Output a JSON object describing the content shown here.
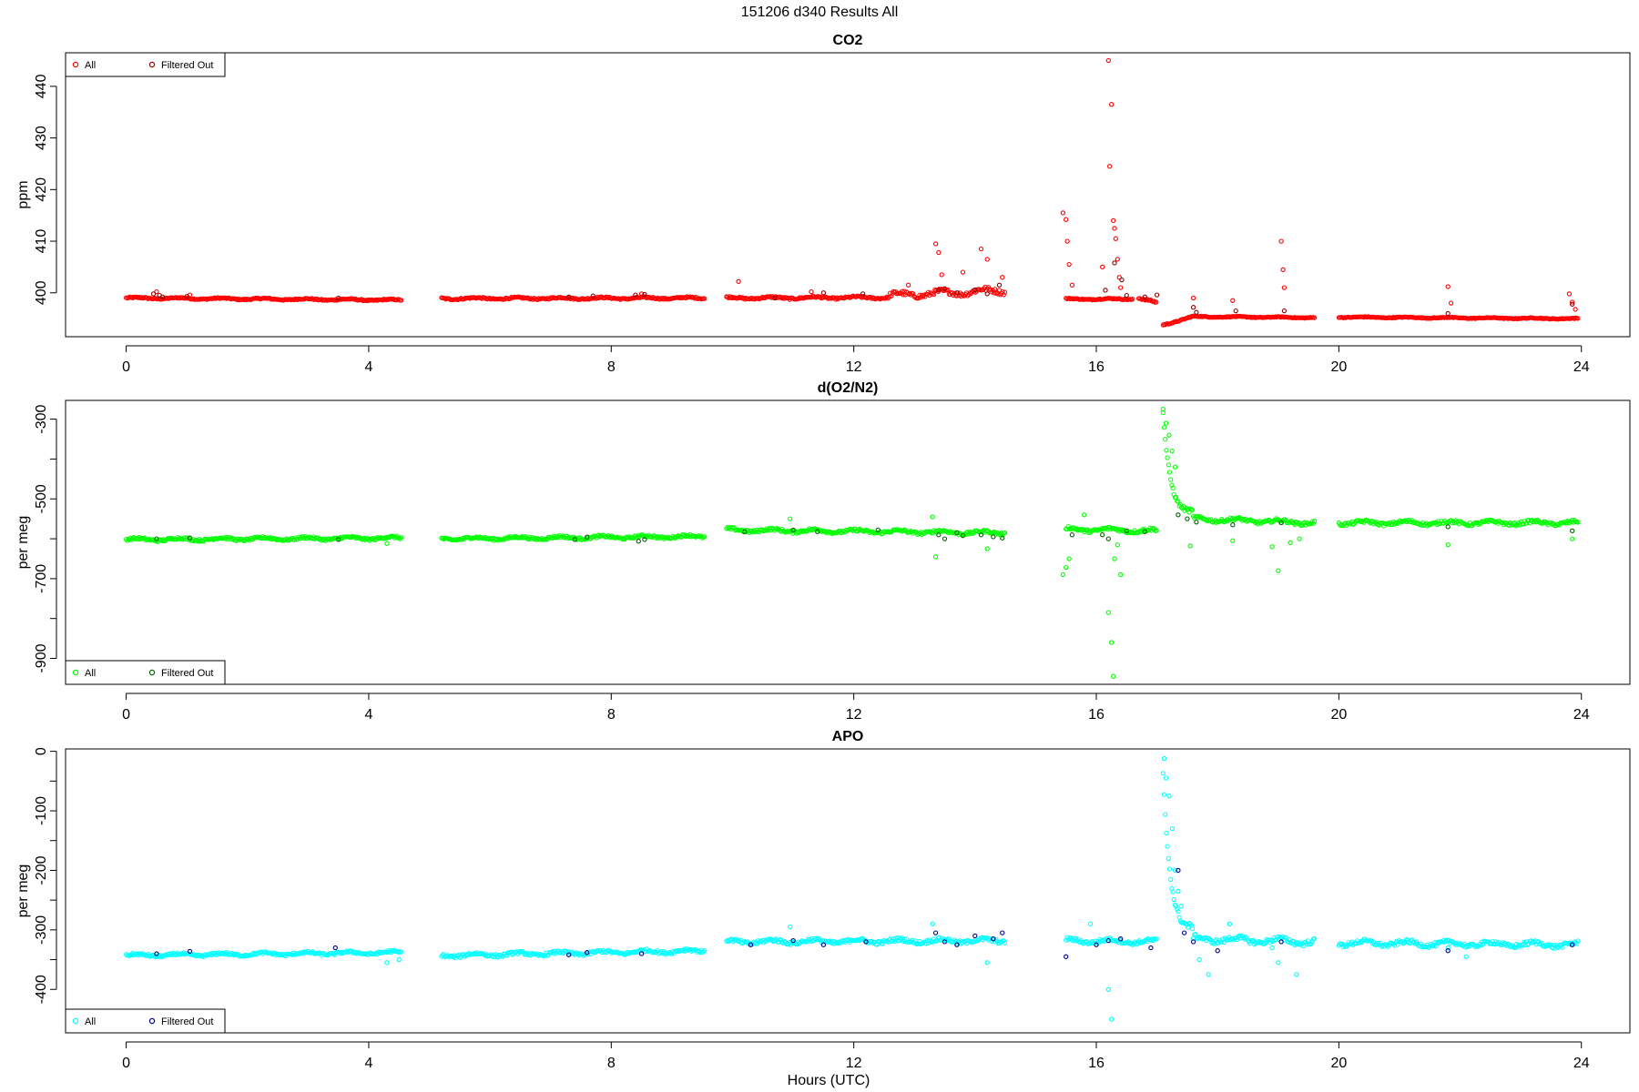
{
  "figure": {
    "title": "151206   d340   Results All",
    "xlabel": "Hours (UTC)"
  },
  "chart_data": [
    {
      "type": "scatter",
      "title": "CO2",
      "xlabel": "",
      "ylabel": "ppm",
      "xlim": [
        -1.0,
        24.8
      ],
      "ylim": [
        391.5,
        446.5
      ],
      "xticks": [
        0,
        4,
        8,
        12,
        16,
        20,
        24
      ],
      "yticks": [
        400,
        410,
        420,
        430,
        440
      ],
      "grid": false,
      "legend": {
        "position": "top-left",
        "entries": [
          {
            "label": "All",
            "color": "#ff0000"
          },
          {
            "label": "Filtered Out",
            "color": "#8b0000"
          }
        ]
      },
      "series": [
        {
          "name": "All",
          "color": "#ff0000",
          "segments": [
            {
              "x0": 0.0,
              "x1": 4.55,
              "y0": 399.0,
              "y1": 398.6,
              "noise": 0.25
            },
            {
              "x0": 5.2,
              "x1": 9.55,
              "y0": 398.9,
              "y1": 399.0,
              "noise": 0.3
            },
            {
              "x0": 9.9,
              "x1": 12.6,
              "y0": 399.0,
              "y1": 399.1,
              "noise": 0.35
            },
            {
              "x0": 12.6,
              "x1": 14.5,
              "y0": 399.5,
              "y1": 400.5,
              "noise": 0.9
            },
            {
              "x0": 15.5,
              "x1": 16.6,
              "y0": 398.8,
              "y1": 398.8,
              "noise": 0.2
            },
            {
              "x0": 16.7,
              "x1": 17.0,
              "y0": 399.0,
              "y1": 398.0,
              "noise": 0.3
            },
            {
              "x0": 17.1,
              "x1": 17.6,
              "y0": 393.8,
              "y1": 395.4,
              "noise": 0.2
            },
            {
              "x0": 17.6,
              "x1": 19.6,
              "y0": 395.4,
              "y1": 395.2,
              "noise": 0.15
            },
            {
              "x0": 20.0,
              "x1": 23.95,
              "y0": 395.3,
              "y1": 395.0,
              "noise": 0.15
            }
          ],
          "points": [
            [
              0.5,
              400.2
            ],
            [
              1.05,
              399.6
            ],
            [
              8.5,
              399.8
            ],
            [
              10.1,
              402.2
            ],
            [
              11.3,
              400.2
            ],
            [
              12.9,
              401.5
            ],
            [
              13.35,
              409.5
            ],
            [
              13.4,
              407.8
            ],
            [
              13.45,
              403.5
            ],
            [
              13.8,
              404.0
            ],
            [
              14.1,
              408.5
            ],
            [
              14.2,
              406.5
            ],
            [
              14.45,
              403.0
            ],
            [
              15.45,
              415.5
            ],
            [
              15.5,
              414.2
            ],
            [
              15.52,
              410.0
            ],
            [
              15.55,
              405.5
            ],
            [
              15.6,
              401.5
            ],
            [
              16.2,
              445.0
            ],
            [
              16.25,
              436.5
            ],
            [
              16.22,
              424.5
            ],
            [
              16.28,
              414.0
            ],
            [
              16.3,
              412.5
            ],
            [
              16.32,
              410.5
            ],
            [
              16.35,
              406.5
            ],
            [
              16.38,
              403.0
            ],
            [
              16.4,
              401.0
            ],
            [
              16.1,
              405.0
            ],
            [
              17.6,
              399.0
            ],
            [
              18.25,
              398.5
            ],
            [
              19.05,
              410.0
            ],
            [
              19.08,
              404.5
            ],
            [
              19.1,
              401.0
            ],
            [
              21.8,
              401.2
            ],
            [
              21.85,
              398.0
            ],
            [
              23.8,
              399.8
            ],
            [
              23.85,
              398.2
            ],
            [
              23.9,
              396.8
            ]
          ]
        },
        {
          "name": "Filtered Out",
          "color": "#8b0000",
          "points": [
            [
              0.45,
              399.8
            ],
            [
              0.55,
              399.5
            ],
            [
              0.6,
              399.2
            ],
            [
              1.0,
              399.3
            ],
            [
              3.5,
              399.0
            ],
            [
              7.3,
              399.2
            ],
            [
              7.7,
              399.4
            ],
            [
              8.4,
              399.6
            ],
            [
              8.55,
              399.7
            ],
            [
              10.7,
              399.0
            ],
            [
              11.5,
              400.0
            ],
            [
              12.15,
              399.8
            ],
            [
              13.4,
              400.5
            ],
            [
              13.5,
              400.8
            ],
            [
              13.7,
              400.0
            ],
            [
              14.0,
              400.6
            ],
            [
              14.2,
              399.8
            ],
            [
              14.4,
              401.5
            ],
            [
              16.15,
              400.5
            ],
            [
              16.3,
              405.8
            ],
            [
              16.42,
              402.5
            ],
            [
              16.5,
              399.5
            ],
            [
              16.8,
              399.2
            ],
            [
              17.0,
              399.6
            ],
            [
              17.6,
              397.2
            ],
            [
              17.65,
              396.2
            ],
            [
              18.3,
              396.5
            ],
            [
              19.1,
              396.5
            ],
            [
              21.8,
              396.0
            ],
            [
              23.85,
              397.8
            ]
          ]
        }
      ]
    },
    {
      "type": "scatter",
      "title": "d(O2/N2)",
      "xlabel": "",
      "ylabel": "per meg",
      "xlim": [
        -1.0,
        24.8
      ],
      "ylim": [
        -965,
        -253
      ],
      "xticks": [
        0,
        4,
        8,
        12,
        16,
        20,
        24
      ],
      "yticks": [
        -300,
        -500,
        -700,
        -900
      ],
      "grid": false,
      "legend": {
        "position": "bottom-left",
        "entries": [
          {
            "label": "All",
            "color": "#00ff00"
          },
          {
            "label": "Filtered Out",
            "color": "#006400"
          }
        ]
      },
      "series": [
        {
          "name": "All",
          "color": "#00ff00",
          "segments": [
            {
              "x0": 0.0,
              "x1": 4.55,
              "y0": -602,
              "y1": -598,
              "noise": 6
            },
            {
              "x0": 5.2,
              "x1": 9.55,
              "y0": -600,
              "y1": -594,
              "noise": 6
            },
            {
              "x0": 9.9,
              "x1": 14.5,
              "y0": -578,
              "y1": -585,
              "noise": 7
            },
            {
              "x0": 15.5,
              "x1": 17.0,
              "y0": -576,
              "y1": -580,
              "noise": 8
            },
            {
              "x0": 17.1,
              "x1": 17.6,
              "y0": -285,
              "y1": -540,
              "noise": 10
            },
            {
              "x0": 17.6,
              "x1": 19.6,
              "y0": -550,
              "y1": -560,
              "noise": 8
            },
            {
              "x0": 20.0,
              "x1": 23.95,
              "y0": -560,
              "y1": -560,
              "noise": 8
            }
          ],
          "points": [
            [
              0.5,
              -605
            ],
            [
              4.3,
              -612
            ],
            [
              10.95,
              -550
            ],
            [
              13.3,
              -545
            ],
            [
              13.35,
              -645
            ],
            [
              14.2,
              -625
            ],
            [
              15.45,
              -690
            ],
            [
              15.5,
              -672
            ],
            [
              15.55,
              -650
            ],
            [
              15.8,
              -540
            ],
            [
              16.2,
              -785
            ],
            [
              16.25,
              -860
            ],
            [
              16.28,
              -945
            ],
            [
              16.3,
              -650
            ],
            [
              16.35,
              -615
            ],
            [
              16.4,
              -690
            ],
            [
              17.1,
              -275
            ],
            [
              17.15,
              -310
            ],
            [
              17.2,
              -340
            ],
            [
              17.25,
              -380
            ],
            [
              17.3,
              -420
            ],
            [
              17.55,
              -618
            ],
            [
              18.25,
              -605
            ],
            [
              18.9,
              -620
            ],
            [
              19.0,
              -680
            ],
            [
              19.2,
              -610
            ],
            [
              19.35,
              -600
            ],
            [
              21.8,
              -615
            ],
            [
              23.85,
              -600
            ]
          ]
        },
        {
          "name": "Filtered Out",
          "color": "#006400",
          "points": [
            [
              0.5,
              -600
            ],
            [
              1.05,
              -598
            ],
            [
              3.5,
              -602
            ],
            [
              7.4,
              -602
            ],
            [
              7.6,
              -596
            ],
            [
              8.45,
              -606
            ],
            [
              8.55,
              -602
            ],
            [
              10.2,
              -582
            ],
            [
              11.0,
              -578
            ],
            [
              11.4,
              -582
            ],
            [
              12.4,
              -578
            ],
            [
              13.4,
              -590
            ],
            [
              13.5,
              -600
            ],
            [
              13.7,
              -585
            ],
            [
              13.8,
              -592
            ],
            [
              14.1,
              -590
            ],
            [
              14.3,
              -595
            ],
            [
              14.45,
              -598
            ],
            [
              15.6,
              -590
            ],
            [
              16.1,
              -590
            ],
            [
              16.2,
              -600
            ],
            [
              16.5,
              -580
            ],
            [
              16.8,
              -582
            ],
            [
              17.35,
              -540
            ],
            [
              17.5,
              -550
            ],
            [
              17.65,
              -558
            ],
            [
              18.25,
              -565
            ],
            [
              19.05,
              -560
            ],
            [
              21.8,
              -570
            ],
            [
              23.85,
              -580
            ]
          ]
        }
      ]
    },
    {
      "type": "scatter",
      "title": "APO",
      "xlabel": "Hours (UTC)",
      "ylabel": "per meg",
      "xlim": [
        -1.0,
        24.8
      ],
      "ylim": [
        -473,
        4
      ],
      "xticks": [
        0,
        4,
        8,
        12,
        16,
        20,
        24
      ],
      "yticks": [
        0,
        -100,
        -200,
        -300,
        -400
      ],
      "grid": false,
      "legend": {
        "position": "bottom-left",
        "entries": [
          {
            "label": "All",
            "color": "#00ffff"
          },
          {
            "label": "Filtered Out",
            "color": "#00008b"
          }
        ]
      },
      "series": [
        {
          "name": "All",
          "color": "#00ffff",
          "segments": [
            {
              "x0": 0.0,
              "x1": 4.55,
              "y0": -343,
              "y1": -338,
              "noise": 4
            },
            {
              "x0": 5.2,
              "x1": 9.55,
              "y0": -343,
              "y1": -335,
              "noise": 5
            },
            {
              "x0": 9.9,
              "x1": 14.5,
              "y0": -320,
              "y1": -318,
              "noise": 6
            },
            {
              "x0": 15.5,
              "x1": 17.0,
              "y0": -318,
              "y1": -320,
              "noise": 6
            },
            {
              "x0": 17.1,
              "x1": 17.6,
              "y0": -40,
              "y1": -305,
              "noise": 10
            },
            {
              "x0": 17.6,
              "x1": 19.6,
              "y0": -315,
              "y1": -320,
              "noise": 8
            },
            {
              "x0": 20.0,
              "x1": 23.95,
              "y0": -322,
              "y1": -325,
              "noise": 7
            }
          ],
          "points": [
            [
              4.3,
              -355
            ],
            [
              4.5,
              -350
            ],
            [
              10.95,
              -295
            ],
            [
              13.3,
              -290
            ],
            [
              14.2,
              -355
            ],
            [
              15.9,
              -290
            ],
            [
              16.2,
              -400
            ],
            [
              16.25,
              -450
            ],
            [
              17.12,
              -12
            ],
            [
              17.15,
              -45
            ],
            [
              17.2,
              -75
            ],
            [
              17.25,
              -130
            ],
            [
              17.3,
              -200
            ],
            [
              17.35,
              -235
            ],
            [
              17.4,
              -260
            ],
            [
              17.7,
              -350
            ],
            [
              17.85,
              -375
            ],
            [
              18.2,
              -290
            ],
            [
              18.9,
              -330
            ],
            [
              19.0,
              -355
            ],
            [
              19.3,
              -375
            ],
            [
              21.8,
              -330
            ],
            [
              22.1,
              -345
            ]
          ]
        },
        {
          "name": "Filtered Out",
          "color": "#00008b",
          "points": [
            [
              0.5,
              -340
            ],
            [
              1.05,
              -336
            ],
            [
              3.45,
              -330
            ],
            [
              7.3,
              -342
            ],
            [
              7.6,
              -338
            ],
            [
              8.5,
              -340
            ],
            [
              10.3,
              -325
            ],
            [
              11.0,
              -318
            ],
            [
              11.5,
              -325
            ],
            [
              12.2,
              -320
            ],
            [
              13.35,
              -305
            ],
            [
              13.5,
              -320
            ],
            [
              13.7,
              -325
            ],
            [
              14.0,
              -310
            ],
            [
              14.3,
              -315
            ],
            [
              14.45,
              -305
            ],
            [
              15.5,
              -345
            ],
            [
              16.0,
              -325
            ],
            [
              16.2,
              -318
            ],
            [
              16.4,
              -315
            ],
            [
              16.9,
              -330
            ],
            [
              17.35,
              -200
            ],
            [
              17.45,
              -305
            ],
            [
              17.6,
              -320
            ],
            [
              18.0,
              -335
            ],
            [
              19.05,
              -320
            ],
            [
              21.8,
              -335
            ],
            [
              23.85,
              -325
            ]
          ]
        }
      ]
    }
  ]
}
